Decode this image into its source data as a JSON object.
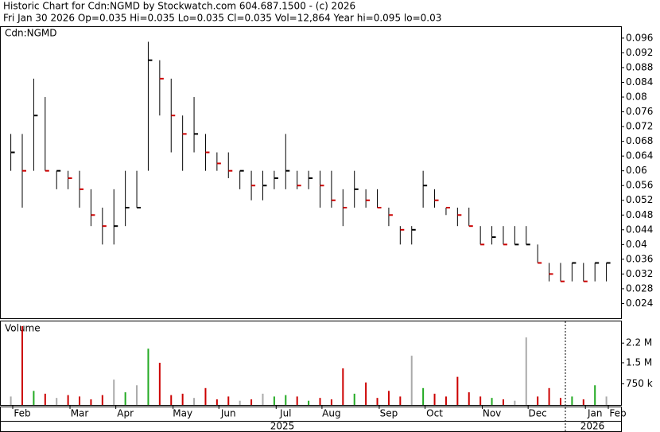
{
  "chart_data": {
    "type": "ohlc",
    "title": "Historic Chart for Cdn:NGMD by Stockwatch.com 604.687.1500 - (c) 2026",
    "subtitle": "Fri Jan 30 2026  Op=0.035  Hi=0.035  Lo=0.035  Cl=0.035  Vol=12,864  Year hi=0.095  lo=0.03",
    "symbol": "Cdn:NGMD",
    "volume_label": "Volume",
    "years": [
      "2025",
      "2026"
    ],
    "categories": [
      null,
      "Feb",
      null,
      null,
      null,
      null,
      "Mar",
      null,
      null,
      null,
      "Apr",
      null,
      null,
      null,
      null,
      "May",
      null,
      null,
      null,
      "Jun",
      null,
      null,
      null,
      null,
      "Jul",
      null,
      null,
      null,
      "Aug",
      null,
      null,
      null,
      null,
      "Sep",
      null,
      null,
      null,
      "Oct",
      null,
      null,
      null,
      null,
      "Nov",
      null,
      null,
      null,
      "Dec",
      null,
      null,
      null,
      null,
      "Jan",
      null,
      "Feb"
    ],
    "high": [
      0.07,
      0.07,
      0.085,
      0.08,
      0.06,
      0.06,
      0.06,
      0.055,
      0.05,
      0.055,
      0.06,
      0.06,
      0.095,
      0.09,
      0.085,
      0.075,
      0.08,
      0.07,
      0.065,
      0.065,
      0.06,
      0.06,
      0.06,
      0.06,
      0.07,
      0.06,
      0.06,
      0.06,
      0.06,
      0.055,
      0.06,
      0.055,
      0.055,
      0.05,
      0.045,
      0.045,
      0.06,
      0.055,
      0.05,
      0.05,
      0.05,
      0.045,
      0.045,
      0.045,
      0.045,
      0.045,
      0.04,
      0.035,
      0.035,
      0.035,
      0.035,
      0.035,
      0.035,
      null
    ],
    "low": [
      0.06,
      0.05,
      0.06,
      0.06,
      0.055,
      0.055,
      0.05,
      0.045,
      0.04,
      0.04,
      0.045,
      0.05,
      0.06,
      0.075,
      0.065,
      0.06,
      0.065,
      0.06,
      0.06,
      0.058,
      0.055,
      0.052,
      0.052,
      0.055,
      0.055,
      0.055,
      0.055,
      0.05,
      0.05,
      0.045,
      0.05,
      0.05,
      0.05,
      0.045,
      0.04,
      0.04,
      0.05,
      0.05,
      0.048,
      0.045,
      0.045,
      0.04,
      0.04,
      0.04,
      0.04,
      0.04,
      0.035,
      0.03,
      0.03,
      0.03,
      0.03,
      0.03,
      0.03,
      null
    ],
    "close": [
      0.065,
      0.06,
      0.075,
      0.06,
      0.06,
      0.058,
      0.055,
      0.048,
      0.045,
      0.045,
      0.05,
      0.05,
      0.09,
      0.085,
      0.075,
      0.07,
      0.07,
      0.065,
      0.062,
      0.06,
      0.06,
      0.056,
      0.056,
      0.058,
      0.06,
      0.056,
      0.058,
      0.056,
      0.052,
      0.05,
      0.055,
      0.052,
      0.05,
      0.048,
      0.044,
      0.044,
      0.056,
      0.052,
      0.05,
      0.048,
      0.045,
      0.04,
      0.042,
      0.04,
      0.04,
      0.04,
      0.035,
      0.032,
      0.03,
      0.035,
      0.03,
      0.035,
      0.035,
      null
    ],
    "ylim": [
      0.02,
      0.099
    ],
    "yticks": [
      0.024,
      0.028,
      0.032,
      0.036,
      0.04,
      0.044,
      0.048,
      0.052,
      0.056,
      0.06,
      0.064,
      0.068,
      0.072,
      0.076,
      0.08,
      0.084,
      0.088,
      0.092,
      0.096
    ],
    "volume": [
      300000,
      2800000,
      500000,
      400000,
      250000,
      350000,
      300000,
      200000,
      350000,
      900000,
      450000,
      700000,
      2000000,
      1500000,
      350000,
      400000,
      250000,
      600000,
      200000,
      300000,
      150000,
      200000,
      400000,
      300000,
      350000,
      300000,
      150000,
      250000,
      200000,
      1300000,
      400000,
      800000,
      250000,
      500000,
      300000,
      1750000,
      600000,
      400000,
      300000,
      1000000,
      450000,
      300000,
      250000,
      200000,
      150000,
      2400000,
      300000,
      600000,
      250000,
      300000,
      200000,
      700000,
      300000,
      null
    ],
    "vlim": [
      0,
      2970000
    ],
    "vticks": [
      {
        "value": 750000,
        "label": "750 k"
      },
      {
        "value": 1500000,
        "label": "1.5 M"
      },
      {
        "value": 2200000,
        "label": "2.2 M"
      }
    ]
  }
}
